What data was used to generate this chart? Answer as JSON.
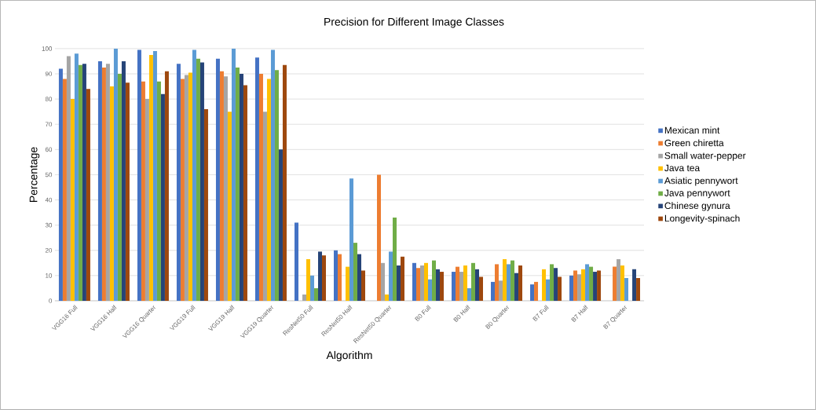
{
  "chart_data": {
    "type": "bar",
    "title": "Precision for Different Image Classes",
    "xlabel": "Algorithm",
    "ylabel": "Percentage",
    "categories": [
      "VGG16 Full",
      "VGG16 Half",
      "VGG16 Quarter",
      "VGG19 Full",
      "VGG19 Half",
      "VGG19 Quarter",
      "ResNet50  Full",
      "ResNet50  Half",
      "ResNet50  Quarter",
      "B0 Full",
      "B0 Half",
      "B0 Quarter",
      "B7 Full",
      "B7 Half",
      "B7 Quarter"
    ],
    "series": [
      {
        "name": "Mexican mint",
        "color": "#4472c4",
        "values": [
          92,
          95,
          99.5,
          94,
          96,
          96.5,
          31,
          20,
          0,
          15,
          11.5,
          7.5,
          6.5,
          10,
          0
        ]
      },
      {
        "name": "Green chiretta",
        "color": "#ed7d31",
        "values": [
          88,
          92.5,
          87,
          88,
          91,
          90,
          0,
          18.5,
          50,
          13,
          13.5,
          14.5,
          7.5,
          12,
          13.5
        ]
      },
      {
        "name": "Small water-pepper",
        "color": "#a5a5a5",
        "values": [
          97,
          94,
          80,
          89.5,
          89,
          75,
          2.5,
          0,
          15,
          14,
          11.5,
          8,
          0,
          10.5,
          16.5
        ]
      },
      {
        "name": "Java tea",
        "color": "#ffc000",
        "values": [
          80,
          85,
          97.5,
          90.5,
          75,
          88,
          16.5,
          13.5,
          2.5,
          15,
          14,
          16.5,
          12.5,
          12.5,
          14
        ]
      },
      {
        "name": "Asiatic pennywort",
        "color": "#5b9bd5",
        "values": [
          98,
          100,
          99,
          99.5,
          100,
          99.5,
          10,
          48.5,
          19.5,
          8.5,
          5,
          14.5,
          8.5,
          14.5,
          9
        ]
      },
      {
        "name": "Java pennywort",
        "color": "#70ad47",
        "values": [
          93.5,
          90,
          87,
          96,
          92.5,
          91.5,
          5,
          23,
          33,
          16,
          15,
          16,
          14.5,
          13.5,
          0
        ]
      },
      {
        "name": "Chinese gynura",
        "color": "#264478",
        "values": [
          94,
          95,
          82,
          94.5,
          90,
          60,
          19.5,
          18.5,
          14,
          12.5,
          12.5,
          11,
          13,
          11.5,
          12.5
        ]
      },
      {
        "name": "Longevity-spinach",
        "color": "#9e480e",
        "values": [
          84,
          86.5,
          91,
          76,
          85.5,
          93.5,
          18,
          12,
          17.5,
          11.5,
          9.5,
          14,
          9.5,
          12,
          9
        ]
      }
    ],
    "ylim": [
      0,
      100
    ],
    "yticks": [
      0,
      10,
      20,
      30,
      40,
      50,
      60,
      70,
      80,
      90,
      100
    ],
    "grid": "y",
    "legend": "right"
  }
}
